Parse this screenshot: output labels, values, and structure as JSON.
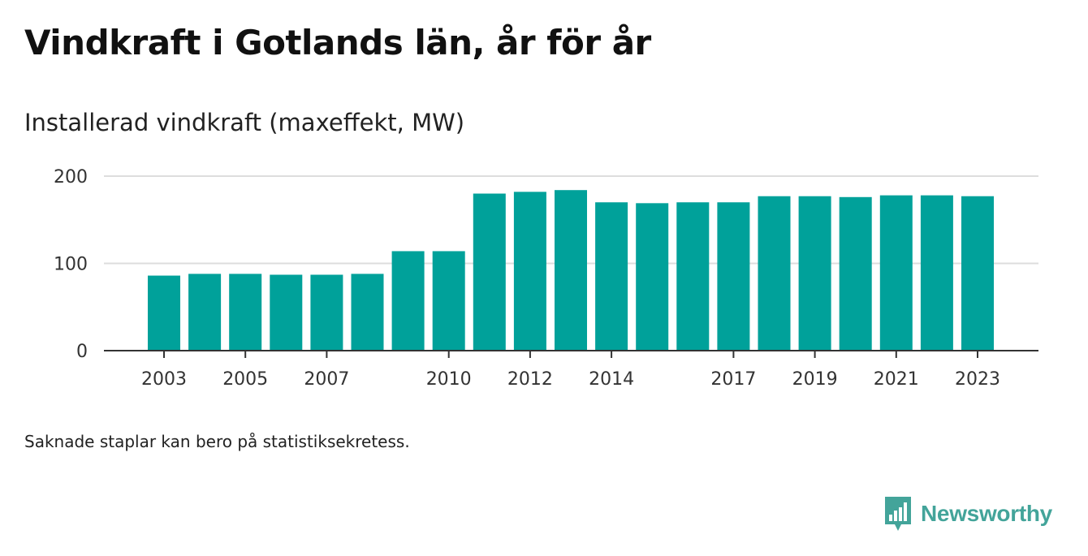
{
  "header": {
    "title": "Vindkraft i Gotlands län, år för år",
    "subtitle": "Installerad vindkraft (maxeffekt, MW)"
  },
  "footnote": "Saknade staplar kan bero på statistiksekretess.",
  "brand": {
    "name": "Newsworthy",
    "color": "#43a49a",
    "icon": "bar-chart-speech-bubble-icon"
  },
  "chart_data": {
    "type": "bar",
    "title": "Vindkraft i Gotlands län, år för år",
    "subtitle": "Installerad vindkraft (maxeffekt, MW)",
    "xlabel": "",
    "ylabel": "",
    "categories": [
      "2003",
      "2004",
      "2005",
      "2006",
      "2007",
      "2008",
      "2009",
      "2010",
      "2011",
      "2012",
      "2013",
      "2014",
      "2015",
      "2016",
      "2017",
      "2018",
      "2019",
      "2020",
      "2021",
      "2022",
      "2023"
    ],
    "values": [
      86,
      88,
      88,
      87,
      87,
      88,
      114,
      114,
      180,
      182,
      184,
      170,
      169,
      170,
      170,
      177,
      177,
      176,
      178,
      178,
      177
    ],
    "x_tick_labels": [
      "2003",
      "2005",
      "2007",
      "2010",
      "2012",
      "2014",
      "2017",
      "2019",
      "2021",
      "2023"
    ],
    "y_ticks": [
      0,
      100,
      200
    ],
    "ylim": [
      0,
      200
    ],
    "grid": true,
    "bar_color": "#00a19a",
    "grid_color": "#dddddd",
    "axis_color": "#333333"
  }
}
